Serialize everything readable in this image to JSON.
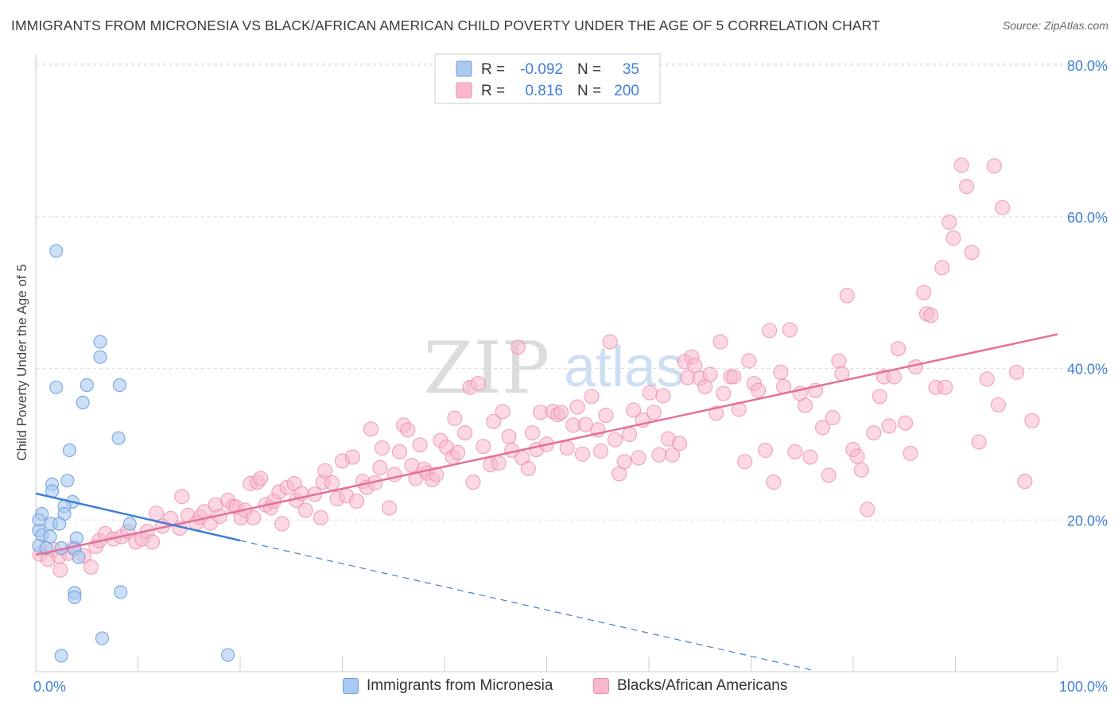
{
  "header": {
    "title": "IMMIGRANTS FROM MICRONESIA VS BLACK/AFRICAN AMERICAN CHILD POVERTY UNDER THE AGE OF 5 CORRELATION CHART",
    "source": "Source: ZipAtlas.com"
  },
  "watermark": {
    "zip": "ZIP",
    "atlas": "atlas"
  },
  "stats_legend": {
    "rows": [
      {
        "r_label": "R =",
        "r_value": "-0.092",
        "n_label": "N =",
        "n_value": "35"
      },
      {
        "r_label": "R =",
        "r_value": "0.816",
        "n_label": "N =",
        "n_value": "200"
      }
    ]
  },
  "colors": {
    "blue_fill": "#a9c9f0",
    "blue_stroke": "#6d9fdd",
    "blue_line": "#3f7fd6",
    "pink_fill": "#f7b8cc",
    "pink_stroke": "#ec8fae",
    "pink_line": "#e4709a",
    "axis_value": "#3f7fd6",
    "grid": "#dddddd"
  },
  "chart_data": {
    "type": "scatter",
    "title": "IMMIGRANTS FROM MICRONESIA VS BLACK/AFRICAN AMERICAN CHILD POVERTY UNDER THE AGE OF 5 CORRELATION CHART",
    "xlabel": "",
    "ylabel": "Child Poverty Under the Age of 5",
    "xlim": [
      0,
      100
    ],
    "ylim": [
      0,
      82
    ],
    "x_tick_labels": [
      "0.0%",
      "100.0%"
    ],
    "y_ticks": [
      20,
      40,
      60,
      80
    ],
    "y_tick_labels": [
      "20.0%",
      "40.0%",
      "60.0%",
      "80.0%"
    ],
    "grid": true,
    "legend_position": "bottom",
    "series": [
      {
        "name": "Immigrants from Micronesia",
        "color": "blue",
        "r": -0.092,
        "n": 35,
        "trend_solid": [
          [
            0,
            23.5
          ],
          [
            20,
            17.3
          ]
        ],
        "trend_dashed": [
          [
            20,
            17.3
          ],
          [
            76,
            0.2
          ]
        ],
        "points": [
          [
            2.0,
            55.5
          ],
          [
            2.0,
            37.5
          ],
          [
            5.0,
            37.8
          ],
          [
            4.6,
            35.5
          ],
          [
            6.3,
            43.5
          ],
          [
            6.3,
            41.5
          ],
          [
            8.2,
            37.8
          ],
          [
            8.1,
            30.8
          ],
          [
            3.3,
            29.2
          ],
          [
            3.1,
            25.2
          ],
          [
            1.6,
            24.7
          ],
          [
            1.6,
            23.8
          ],
          [
            3.6,
            22.4
          ],
          [
            2.8,
            21.8
          ],
          [
            0.6,
            20.8
          ],
          [
            2.8,
            20.8
          ],
          [
            0.3,
            20.0
          ],
          [
            1.5,
            19.5
          ],
          [
            2.3,
            19.5
          ],
          [
            9.2,
            19.5
          ],
          [
            0.3,
            18.6
          ],
          [
            0.6,
            18.0
          ],
          [
            1.4,
            17.8
          ],
          [
            4.0,
            17.6
          ],
          [
            0.3,
            16.6
          ],
          [
            1.0,
            16.3
          ],
          [
            2.5,
            16.3
          ],
          [
            3.8,
            16.2
          ],
          [
            4.2,
            15.1
          ],
          [
            3.8,
            10.4
          ],
          [
            8.3,
            10.5
          ],
          [
            3.8,
            9.8
          ],
          [
            6.5,
            4.4
          ],
          [
            2.5,
            2.1
          ],
          [
            18.8,
            2.2
          ]
        ]
      },
      {
        "name": "Blacks/African Americans",
        "color": "pink",
        "r": 0.816,
        "n": 200,
        "trend": [
          [
            0,
            15.4
          ],
          [
            100,
            44.5
          ]
        ],
        "points": [
          [
            0.4,
            15.5
          ],
          [
            1.2,
            14.8
          ],
          [
            1.7,
            16.1
          ],
          [
            2.3,
            15.2
          ],
          [
            2.4,
            13.4
          ],
          [
            3.2,
            15.6
          ],
          [
            3.7,
            16.3
          ],
          [
            4.7,
            15.3
          ],
          [
            5.4,
            13.8
          ],
          [
            5.9,
            16.5
          ],
          [
            6.2,
            17.3
          ],
          [
            6.8,
            18.2
          ],
          [
            7.6,
            17.5
          ],
          [
            8.4,
            17.8
          ],
          [
            9.0,
            18.5
          ],
          [
            9.8,
            17.1
          ],
          [
            10.4,
            17.5
          ],
          [
            10.9,
            18.5
          ],
          [
            11.4,
            17.1
          ],
          [
            11.8,
            20.9
          ],
          [
            12.4,
            19.2
          ],
          [
            13.2,
            20.2
          ],
          [
            14.1,
            18.9
          ],
          [
            14.3,
            23.1
          ],
          [
            14.9,
            20.6
          ],
          [
            15.7,
            19.6
          ],
          [
            16.1,
            20.4
          ],
          [
            16.5,
            21.1
          ],
          [
            17.1,
            19.6
          ],
          [
            17.6,
            22.0
          ],
          [
            18.0,
            20.5
          ],
          [
            18.8,
            22.6
          ],
          [
            19.3,
            21.8
          ],
          [
            19.6,
            21.7
          ],
          [
            20.1,
            20.3
          ],
          [
            20.5,
            21.3
          ],
          [
            21.0,
            24.8
          ],
          [
            21.3,
            20.3
          ],
          [
            21.7,
            25.0
          ],
          [
            22.0,
            25.5
          ],
          [
            22.5,
            22.0
          ],
          [
            23.0,
            21.6
          ],
          [
            23.3,
            22.5
          ],
          [
            23.8,
            23.7
          ],
          [
            24.1,
            19.5
          ],
          [
            24.6,
            24.3
          ],
          [
            25.3,
            24.8
          ],
          [
            25.5,
            22.6
          ],
          [
            26.0,
            23.5
          ],
          [
            26.4,
            21.3
          ],
          [
            27.3,
            23.4
          ],
          [
            27.9,
            20.3
          ],
          [
            28.1,
            25.0
          ],
          [
            28.3,
            26.5
          ],
          [
            29.0,
            24.9
          ],
          [
            29.5,
            22.8
          ],
          [
            30.0,
            27.8
          ],
          [
            30.4,
            23.2
          ],
          [
            31.0,
            28.3
          ],
          [
            31.4,
            22.5
          ],
          [
            32.0,
            25.1
          ],
          [
            32.4,
            24.3
          ],
          [
            32.8,
            32.0
          ],
          [
            33.2,
            24.9
          ],
          [
            33.7,
            26.9
          ],
          [
            33.9,
            29.5
          ],
          [
            34.6,
            21.6
          ],
          [
            35.1,
            26.0
          ],
          [
            35.6,
            29.0
          ],
          [
            36.0,
            32.5
          ],
          [
            36.4,
            31.9
          ],
          [
            36.8,
            27.2
          ],
          [
            37.2,
            25.5
          ],
          [
            37.6,
            29.9
          ],
          [
            38.0,
            26.7
          ],
          [
            38.3,
            26.2
          ],
          [
            38.8,
            25.3
          ],
          [
            39.2,
            26.0
          ],
          [
            39.6,
            30.5
          ],
          [
            40.2,
            29.6
          ],
          [
            40.8,
            28.3
          ],
          [
            41.0,
            33.4
          ],
          [
            41.3,
            28.9
          ],
          [
            42.0,
            31.5
          ],
          [
            42.5,
            37.5
          ],
          [
            42.8,
            25.0
          ],
          [
            43.3,
            38.0
          ],
          [
            43.8,
            29.7
          ],
          [
            44.5,
            27.3
          ],
          [
            44.8,
            33.0
          ],
          [
            45.3,
            27.5
          ],
          [
            45.7,
            34.3
          ],
          [
            46.3,
            31.0
          ],
          [
            46.6,
            29.2
          ],
          [
            47.2,
            42.8
          ],
          [
            47.6,
            28.2
          ],
          [
            48.2,
            26.8
          ],
          [
            48.6,
            31.5
          ],
          [
            49.0,
            29.3
          ],
          [
            49.4,
            34.2
          ],
          [
            50.0,
            30.0
          ],
          [
            50.6,
            34.3
          ],
          [
            51.1,
            33.9
          ],
          [
            51.4,
            34.2
          ],
          [
            52.0,
            29.5
          ],
          [
            52.6,
            32.5
          ],
          [
            53.0,
            34.9
          ],
          [
            53.5,
            28.7
          ],
          [
            53.8,
            32.6
          ],
          [
            54.4,
            36.3
          ],
          [
            55.0,
            31.9
          ],
          [
            55.3,
            29.1
          ],
          [
            55.8,
            33.8
          ],
          [
            56.2,
            43.5
          ],
          [
            56.7,
            30.6
          ],
          [
            57.1,
            26.1
          ],
          [
            57.6,
            27.7
          ],
          [
            58.1,
            31.3
          ],
          [
            58.5,
            34.5
          ],
          [
            59.0,
            28.2
          ],
          [
            59.4,
            33.2
          ],
          [
            60.1,
            36.8
          ],
          [
            60.5,
            34.2
          ],
          [
            61.0,
            28.6
          ],
          [
            61.4,
            36.4
          ],
          [
            61.9,
            30.7
          ],
          [
            62.3,
            28.6
          ],
          [
            63.0,
            30.1
          ],
          [
            63.5,
            40.9
          ],
          [
            63.8,
            38.8
          ],
          [
            64.2,
            41.5
          ],
          [
            64.5,
            40.4
          ],
          [
            65.0,
            38.7
          ],
          [
            65.5,
            37.6
          ],
          [
            66.0,
            39.2
          ],
          [
            66.6,
            34.1
          ],
          [
            67.0,
            43.5
          ],
          [
            67.3,
            36.7
          ],
          [
            68.0,
            38.9
          ],
          [
            68.3,
            38.9
          ],
          [
            68.8,
            34.6
          ],
          [
            69.4,
            27.7
          ],
          [
            69.8,
            41.0
          ],
          [
            70.3,
            38.0
          ],
          [
            70.7,
            37.1
          ],
          [
            71.4,
            29.2
          ],
          [
            71.8,
            45.0
          ],
          [
            72.2,
            25.0
          ],
          [
            72.9,
            39.5
          ],
          [
            73.2,
            37.6
          ],
          [
            73.8,
            45.1
          ],
          [
            74.3,
            29.0
          ],
          [
            74.8,
            36.7
          ],
          [
            75.3,
            35.1
          ],
          [
            75.8,
            28.3
          ],
          [
            76.3,
            37.1
          ],
          [
            77.0,
            32.2
          ],
          [
            77.6,
            25.9
          ],
          [
            78.0,
            33.5
          ],
          [
            78.6,
            41.0
          ],
          [
            78.9,
            39.3
          ],
          [
            79.4,
            49.6
          ],
          [
            80.0,
            29.3
          ],
          [
            80.4,
            28.4
          ],
          [
            80.8,
            26.6
          ],
          [
            81.4,
            21.4
          ],
          [
            82.0,
            31.5
          ],
          [
            82.6,
            36.3
          ],
          [
            83.0,
            38.9
          ],
          [
            83.5,
            32.4
          ],
          [
            84.0,
            38.9
          ],
          [
            84.4,
            42.6
          ],
          [
            85.1,
            32.8
          ],
          [
            85.6,
            28.8
          ],
          [
            86.1,
            40.2
          ],
          [
            86.9,
            50.0
          ],
          [
            87.2,
            47.2
          ],
          [
            87.6,
            47.0
          ],
          [
            88.1,
            37.5
          ],
          [
            88.7,
            53.3
          ],
          [
            89.0,
            37.5
          ],
          [
            89.4,
            59.3
          ],
          [
            89.8,
            57.2
          ],
          [
            90.6,
            66.8
          ],
          [
            91.1,
            64.0
          ],
          [
            91.6,
            55.3
          ],
          [
            92.3,
            30.3
          ],
          [
            93.1,
            38.6
          ],
          [
            93.8,
            66.7
          ],
          [
            94.2,
            35.2
          ],
          [
            94.6,
            61.2
          ],
          [
            96.0,
            39.5
          ],
          [
            96.8,
            25.1
          ],
          [
            97.5,
            33.1
          ]
        ]
      }
    ]
  },
  "bottom_legend": {
    "items": [
      {
        "label": "Immigrants from Micronesia"
      },
      {
        "label": "Blacks/African Americans"
      }
    ]
  }
}
